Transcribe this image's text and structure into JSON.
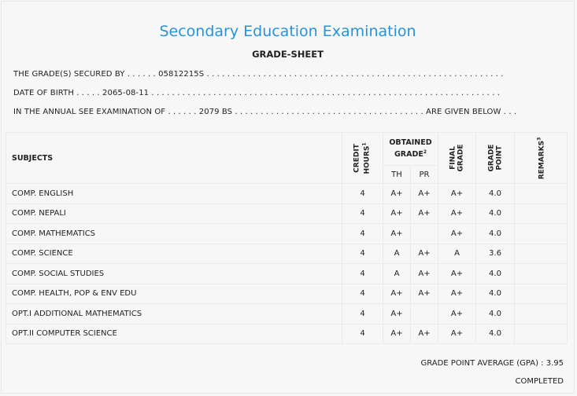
{
  "header": {
    "title": "Secondary Education Examination",
    "subtitle": "GRADE-SHEET"
  },
  "info": {
    "grade_secured_by": "THE GRADE(S) SECURED BY . . . . . . 05812215S . . . . . . . . . . . . . . . . . . . . . . . . . . . . . . . . . . . . . . . . . . . . . . . . . . . . . . . . . .",
    "date_of_birth": "DATE OF BIRTH . . . . . 2065-08-11 . . . . . . . . . . . . . . . . . . . . . . . . . . . . . . . . . . . . . . . . . . . . . . . . . . . . . . . . . . . . . . . . . . . .",
    "exam_line": "IN THE ANNUAL SEE EXAMINATION OF . . . . . . 2079 BS . . . . . . . . . . . . . . . . . . . . . . . . . . . . . . . . . . . . . ARE GIVEN BELOW . . ."
  },
  "table": {
    "headers": {
      "subjects": "SUBJECTS",
      "credit_line1": "CREDIT",
      "credit_line2": "HOURS",
      "credit_sup": "1",
      "obtained_line1": "OBTAINED",
      "obtained_line2": "GRADE",
      "obtained_sup": "2",
      "th": "TH",
      "pr": "PR",
      "final_line1": "FINAL",
      "final_line2": "GRADE",
      "gp_line1": "GRADE",
      "gp_line2": "POINT",
      "remarks": "REMARKS",
      "remarks_sup": "3"
    },
    "rows": [
      {
        "subject": "COMP. ENGLISH",
        "credit": "4",
        "th": "A+",
        "pr": "A+",
        "final": "A+",
        "gp": "4.0",
        "remarks": ""
      },
      {
        "subject": "COMP. NEPALI",
        "credit": "4",
        "th": "A+",
        "pr": "A+",
        "final": "A+",
        "gp": "4.0",
        "remarks": ""
      },
      {
        "subject": "COMP. MATHEMATICS",
        "credit": "4",
        "th": "A+",
        "pr": "",
        "final": "A+",
        "gp": "4.0",
        "remarks": ""
      },
      {
        "subject": "COMP. SCIENCE",
        "credit": "4",
        "th": "A",
        "pr": "A+",
        "final": "A",
        "gp": "3.6",
        "remarks": ""
      },
      {
        "subject": "COMP. SOCIAL STUDIES",
        "credit": "4",
        "th": "A",
        "pr": "A+",
        "final": "A+",
        "gp": "4.0",
        "remarks": ""
      },
      {
        "subject": "COMP. HEALTH, POP & ENV EDU",
        "credit": "4",
        "th": "A+",
        "pr": "A+",
        "final": "A+",
        "gp": "4.0",
        "remarks": ""
      },
      {
        "subject": "OPT.I ADDITIONAL MATHEMATICS",
        "credit": "4",
        "th": "A+",
        "pr": "",
        "final": "A+",
        "gp": "4.0",
        "remarks": ""
      },
      {
        "subject": "OPT.II COMPUTER SCIENCE",
        "credit": "4",
        "th": "A+",
        "pr": "A+",
        "final": "A+",
        "gp": "4.0",
        "remarks": ""
      }
    ]
  },
  "footer": {
    "gpa": "GRADE POINT AVERAGE (GPA) : 3.95",
    "status": "COMPLETED"
  }
}
